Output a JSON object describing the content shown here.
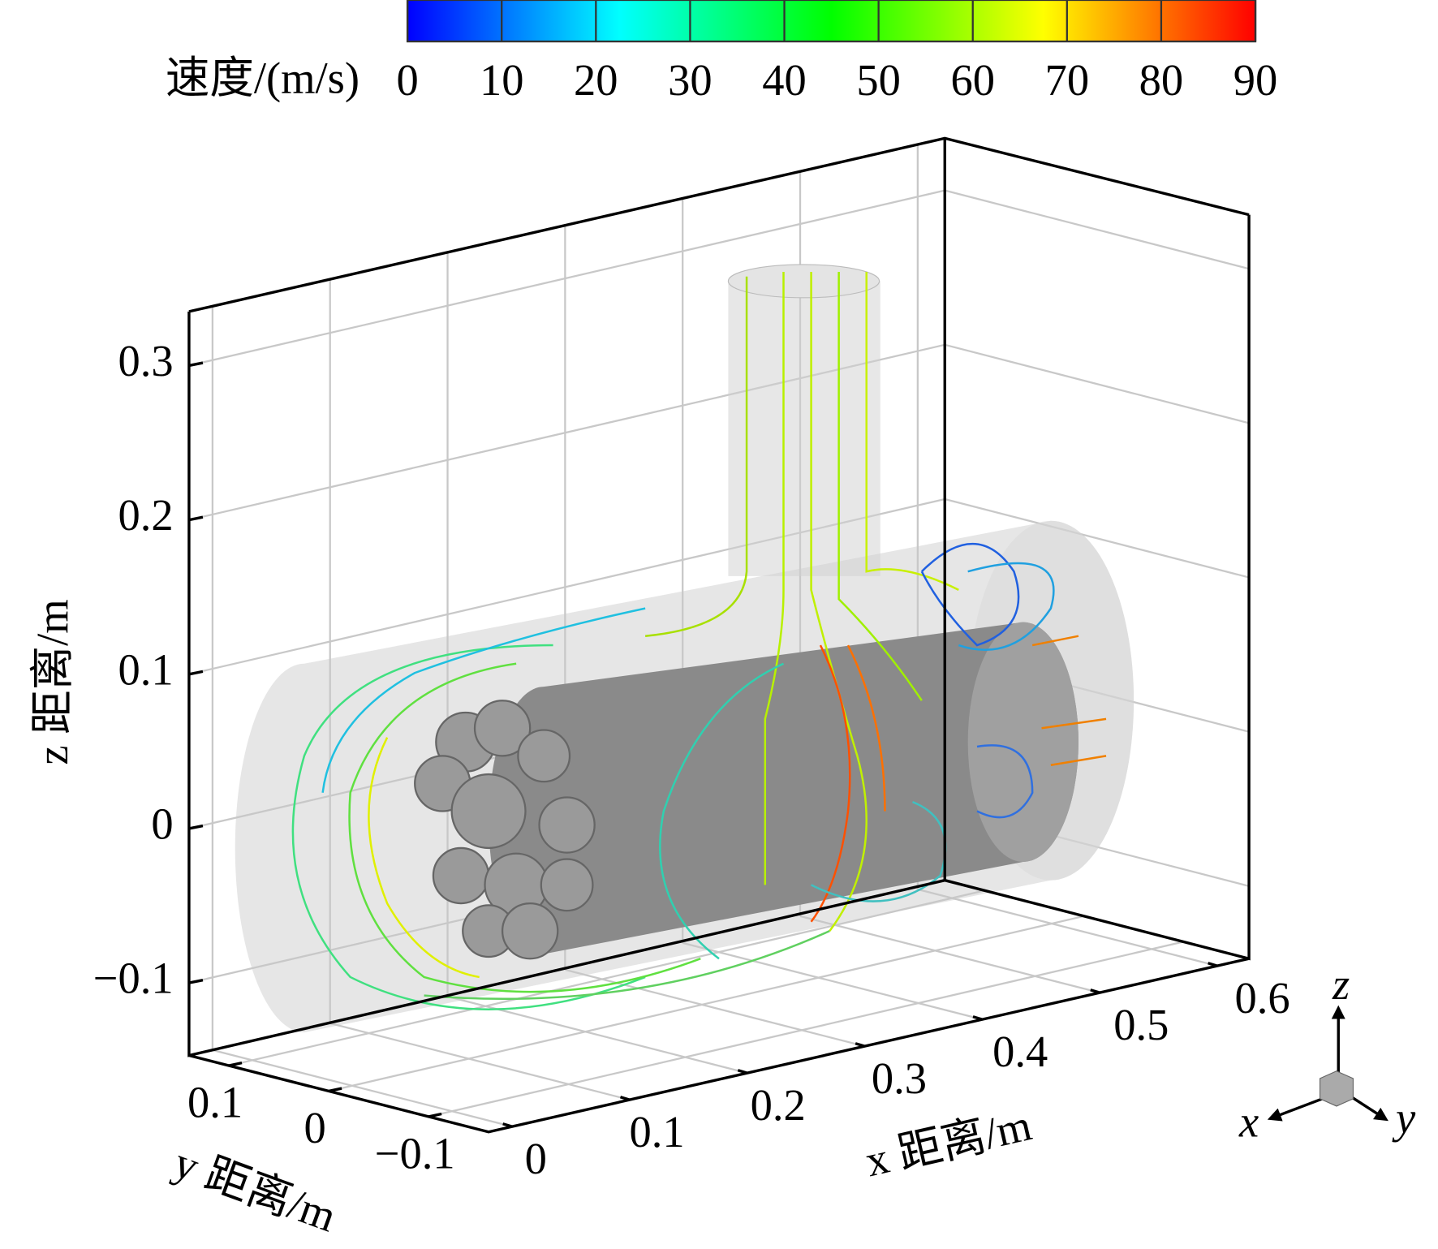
{
  "chart_data": {
    "type": "streamline-3d",
    "colorbar": {
      "title": "速度/(m/s)",
      "clim": [
        0,
        90
      ],
      "ticks": [
        0,
        10,
        20,
        30,
        40,
        50,
        60,
        70,
        80,
        90
      ],
      "colormap": [
        "#0000ff",
        "#0080ff",
        "#00ffff",
        "#00ff80",
        "#00ff00",
        "#80ff00",
        "#ffff00",
        "#ff8000",
        "#ff0000"
      ]
    },
    "zlabel": "z 距离/m",
    "zlim": [
      -0.147,
      0.335
    ],
    "zticks": [
      {
        "value": -0.1,
        "label": "−0.1"
      },
      0,
      0.1,
      0.2,
      0.3
    ],
    "xlabel": "x 距离/m",
    "xlim": [
      -0.02,
      0.627
    ],
    "xticks": [
      0,
      0.1,
      0.2,
      0.3,
      0.4,
      0.5,
      0.6
    ],
    "ylabel": "y 距离/m",
    "ylim": [
      0.14,
      -0.16
    ],
    "yticks": [
      0.1,
      0,
      {
        "value": -0.1,
        "label": "−0.1"
      }
    ],
    "grid": true,
    "orientation": {
      "x": "x",
      "y": "y",
      "z": "z"
    }
  }
}
